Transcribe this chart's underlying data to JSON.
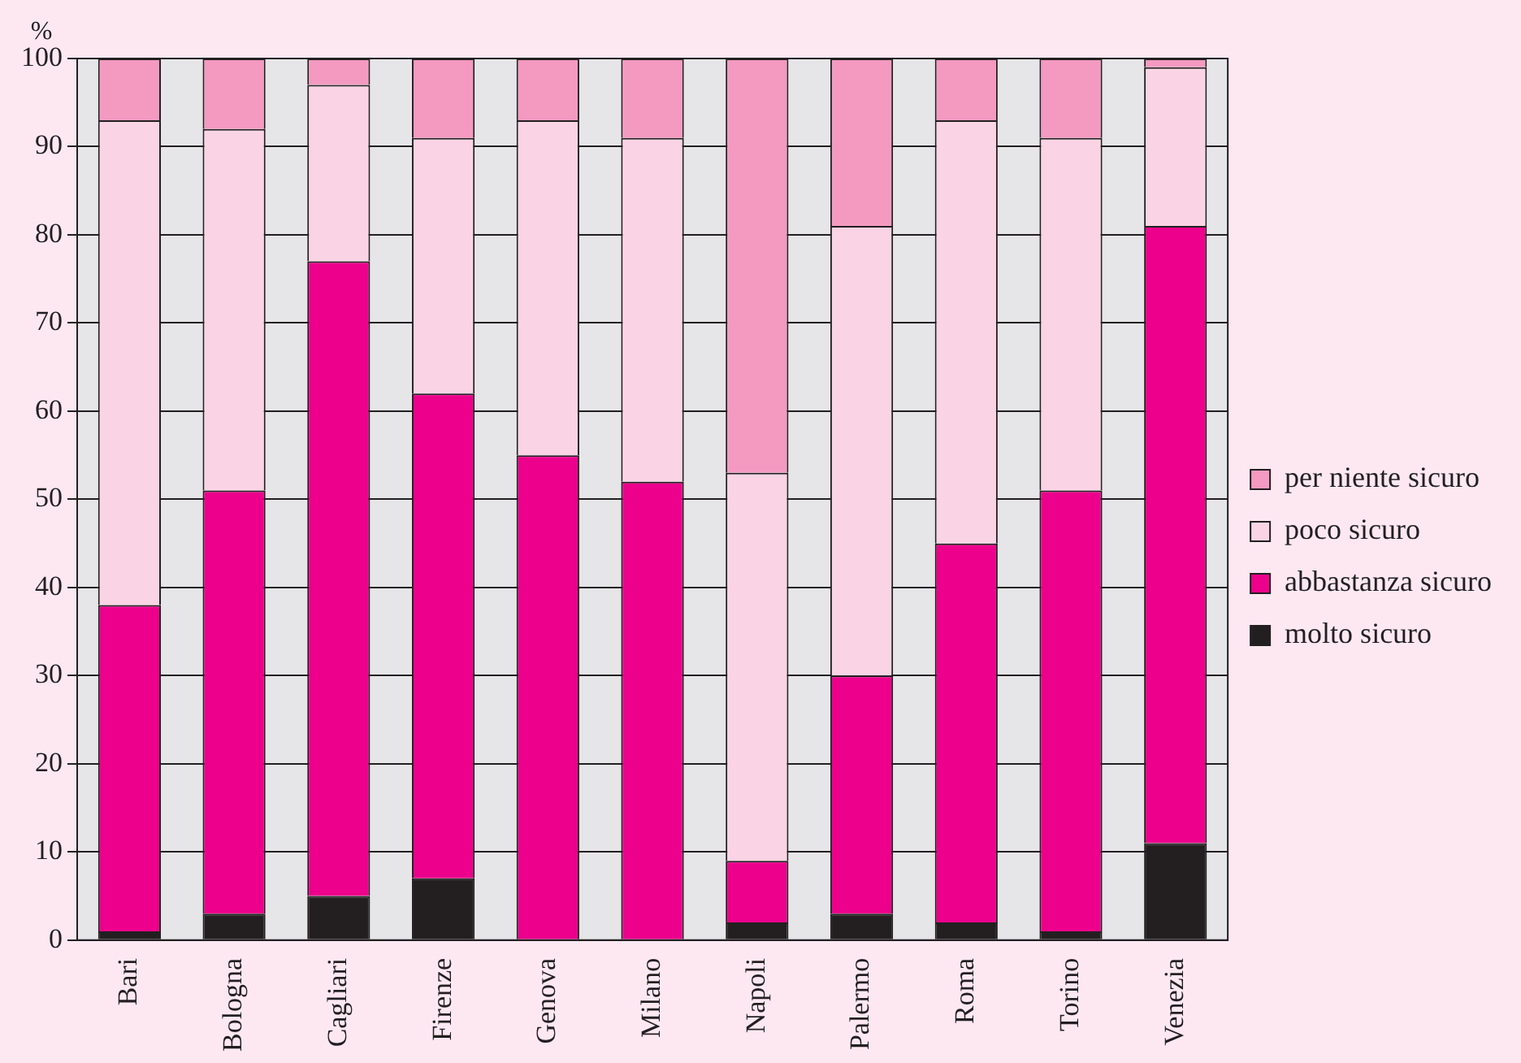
{
  "chart_data": {
    "type": "bar",
    "stacked": true,
    "ylabel": "%",
    "categories": [
      "Bari",
      "Bologna",
      "Cagliari",
      "Firenze",
      "Genova",
      "Milano",
      "Napoli",
      "Palermo",
      "Roma",
      "Torino",
      "Venezia"
    ],
    "series": [
      {
        "name": "molto sicuro",
        "color": "#231f20",
        "values": [
          1,
          3,
          5,
          7,
          0,
          0,
          2,
          3,
          2,
          1,
          11
        ]
      },
      {
        "name": "abbastanza sicuro",
        "color": "#ec008c",
        "values": [
          37,
          48,
          72,
          55,
          55,
          52,
          7,
          27,
          43,
          50,
          70
        ]
      },
      {
        "name": "poco sicuro",
        "color": "#fad4e4",
        "values": [
          55,
          41,
          20,
          29,
          38,
          39,
          44,
          51,
          48,
          40,
          18
        ]
      },
      {
        "name": "per niente sicuro",
        "color": "#f49ac1",
        "values": [
          7,
          8,
          3,
          9,
          7,
          9,
          47,
          19,
          7,
          9,
          1
        ]
      }
    ],
    "ylim": [
      0,
      100
    ],
    "yticks": [
      0,
      10,
      20,
      30,
      40,
      50,
      60,
      70,
      80,
      90,
      100
    ],
    "grid": "y",
    "legend": "right"
  }
}
